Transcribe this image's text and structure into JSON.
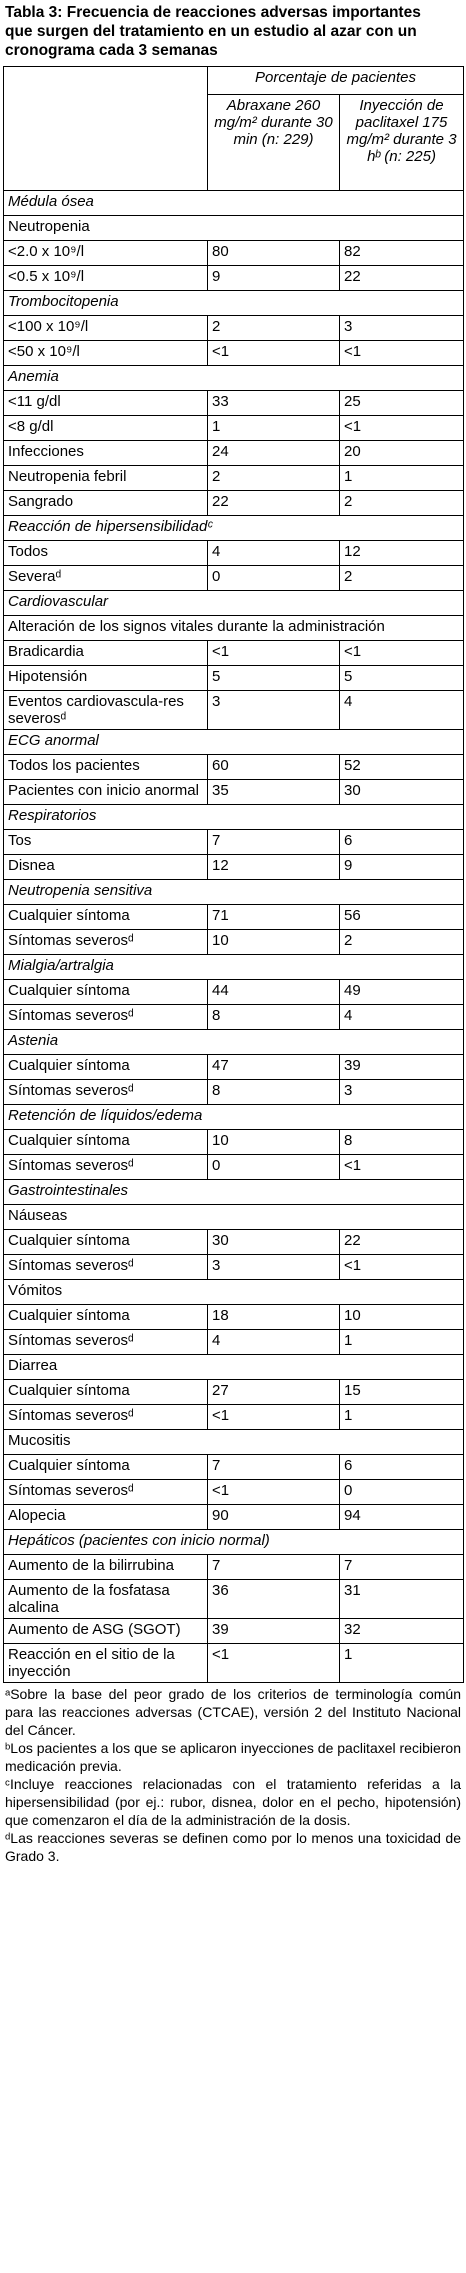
{
  "title": "Tabla 3: Frecuencia de reacciones adversas importantes que surgen del tratamiento en un estudio al azar con un cronograma cada 3 semanas",
  "table": {
    "group_header": "Porcentaje de pacientes",
    "columns": [
      "Abraxane 260 mg/m² durante 30 min (n: 229)",
      "Inyección de paclitaxel 175 mg/m² durante 3 hᵇ (n: 225)"
    ],
    "rows": [
      {
        "section": "Médula ósea"
      },
      {
        "subheading": "Neutropenia"
      },
      {
        "cells": [
          "<2.0 x 10⁹/l",
          80,
          82
        ]
      },
      {
        "cells": [
          "<0.5 x 10⁹/l",
          9,
          22
        ]
      },
      {
        "section": "Trombocitopenia"
      },
      {
        "cells": [
          "<100 x 10⁹/l",
          2,
          3
        ]
      },
      {
        "cells": [
          "<50 x 10⁹/l",
          "<1",
          "<1"
        ]
      },
      {
        "section": "Anemia"
      },
      {
        "cells": [
          "<11 g/dl",
          33,
          25
        ]
      },
      {
        "cells": [
          "<8 g/dl",
          1,
          "<1"
        ]
      },
      {
        "cells": [
          "Infecciones",
          24,
          20
        ]
      },
      {
        "cells": [
          "Neutropenia febril",
          2,
          1
        ]
      },
      {
        "cells": [
          "Sangrado",
          22,
          2
        ]
      },
      {
        "section": "Reacción de hipersensibilidadᶜ"
      },
      {
        "cells": [
          "Todos",
          4,
          12
        ]
      },
      {
        "cells": [
          "Severaᵈ",
          0,
          2
        ]
      },
      {
        "section": "Cardiovascular"
      },
      {
        "subheading": "Alteración de los signos vitales durante la administración"
      },
      {
        "cells": [
          "Bradicardia",
          "<1",
          "<1"
        ]
      },
      {
        "cells": [
          "Hipotensión",
          5,
          5
        ]
      },
      {
        "cells": [
          "Eventos cardiovascula-res severosᵈ",
          3,
          4
        ]
      },
      {
        "section": "ECG anormal"
      },
      {
        "cells": [
          "Todos los pacientes",
          60,
          52
        ]
      },
      {
        "cells": [
          "Pacientes con inicio anormal",
          35,
          30
        ]
      },
      {
        "section": "Respiratorios"
      },
      {
        "cells": [
          "Tos",
          7,
          6
        ]
      },
      {
        "cells": [
          "Disnea",
          12,
          9
        ]
      },
      {
        "section": "Neutropenia sensitiva"
      },
      {
        "cells": [
          "Cualquier síntoma",
          71,
          56
        ]
      },
      {
        "cells": [
          "Síntomas severosᵈ",
          10,
          2
        ]
      },
      {
        "section": "Mialgia/artralgia"
      },
      {
        "cells": [
          "Cualquier síntoma",
          44,
          49
        ]
      },
      {
        "cells": [
          "Síntomas severosᵈ",
          8,
          4
        ]
      },
      {
        "section": "Astenia"
      },
      {
        "cells": [
          "Cualquier síntoma",
          47,
          39
        ]
      },
      {
        "cells": [
          "Síntomas severosᵈ",
          8,
          3
        ]
      },
      {
        "section": "Retención de líquidos/edema"
      },
      {
        "cells": [
          "Cualquier síntoma",
          10,
          8
        ]
      },
      {
        "cells": [
          "Síntomas severosᵈ",
          0,
          "<1"
        ]
      },
      {
        "section": "Gastrointestinales"
      },
      {
        "subheading": "Náuseas"
      },
      {
        "cells": [
          "Cualquier síntoma",
          30,
          22
        ]
      },
      {
        "cells": [
          "Síntomas severosᵈ",
          3,
          "<1"
        ]
      },
      {
        "subheading": "Vómitos"
      },
      {
        "cells": [
          "Cualquier síntoma",
          18,
          10
        ]
      },
      {
        "cells": [
          "Síntomas severosᵈ",
          4,
          1
        ]
      },
      {
        "subheading": "Diarrea"
      },
      {
        "cells": [
          "Cualquier síntoma",
          27,
          15
        ]
      },
      {
        "cells": [
          "Síntomas severosᵈ",
          "<1",
          1
        ]
      },
      {
        "subheading": "Mucositis"
      },
      {
        "cells": [
          "Cualquier síntoma",
          7,
          6
        ]
      },
      {
        "cells": [
          "Síntomas severosᵈ",
          "<1",
          0
        ]
      },
      {
        "cells": [
          "Alopecia",
          90,
          94
        ]
      },
      {
        "section": "Hepáticos (pacientes con inicio normal)"
      },
      {
        "cells": [
          "Aumento de la bilirrubina",
          7,
          7
        ]
      },
      {
        "cells": [
          "Aumento de la fosfatasa alcalina",
          36,
          31
        ]
      },
      {
        "cells": [
          "Aumento de ASG (SGOT)",
          39,
          32
        ]
      },
      {
        "cells": [
          "Reacción en el sitio de la inyección",
          "<1",
          1
        ]
      }
    ]
  },
  "footnotes": [
    "ᵃSobre la base del peor grado de los criterios de terminología común para las reacciones adversas (CTCAE), versión 2 del Instituto Nacional del Cáncer.",
    "ᵇLos pacientes a los que se aplicaron inyecciones de paclitaxel recibieron medicación previa.",
    "ᶜIncluye reacciones relacionadas con el tratamiento referidas a la hipersensibilidad (por ej.: rubor, disnea, dolor en el pecho, hipotensión) que comenzaron el día de la administración de la dosis.",
    "ᵈLas reacciones severas se definen como por lo menos una toxicidad de Grado 3."
  ]
}
